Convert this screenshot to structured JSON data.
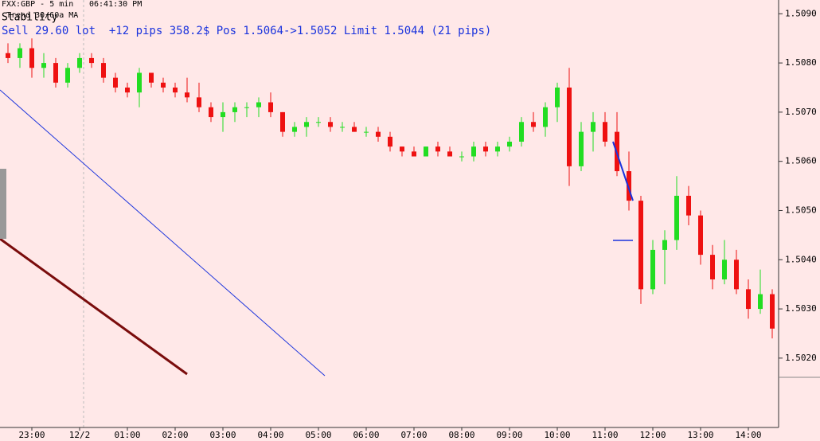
{
  "chart_data": {
    "type": "candlestick",
    "ticker": "FXX:GBP - 5 min",
    "clock": "06:41:30 PM",
    "indicator": "Trend 30/60a MA",
    "strategy": "Stability",
    "status": "Sell 29.60 lot  +12 pips 358.2$ Pos 1.5064->1.5052 Limit 1.5044 (21 pips)",
    "up_color": "#22dd22",
    "down_color": "#ee1111",
    "categories": [
      null,
      null,
      "23:00",
      null,
      null,
      null,
      "12/2",
      null,
      null,
      null,
      "01:00",
      null,
      null,
      null,
      "02:00",
      null,
      null,
      null,
      "03:00",
      null,
      null,
      null,
      "04:00",
      null,
      null,
      null,
      "05:00",
      null,
      null,
      null,
      "06:00",
      null,
      null,
      null,
      "07:00",
      null,
      null,
      null,
      "08:00",
      null,
      null,
      null,
      "09:00",
      null,
      null,
      null,
      "10:00",
      null,
      null,
      null,
      "11:00",
      null,
      null,
      null,
      "12:00",
      null,
      null,
      null,
      "13:00",
      null,
      null,
      null,
      "14:00",
      null,
      null
    ],
    "open": [
      1.5082,
      1.5081,
      1.5083,
      1.5079,
      1.508,
      1.5076,
      1.5079,
      1.5081,
      1.508,
      1.5077,
      1.5075,
      1.5074,
      1.5078,
      1.5076,
      1.5075,
      1.5074,
      1.5073,
      1.5071,
      1.5069,
      1.507,
      1.5071,
      1.5071,
      1.5072,
      1.507,
      1.5066,
      1.5067,
      1.5068,
      1.5068,
      1.5067,
      1.5067,
      1.5066,
      1.5066,
      1.5065,
      1.5063,
      1.5062,
      1.5061,
      1.5063,
      1.5062,
      1.5061,
      1.5061,
      1.5063,
      1.5062,
      1.5063,
      1.5064,
      1.5068,
      1.5067,
      1.5071,
      1.5075,
      1.5059,
      1.5066,
      1.5068,
      1.5066,
      1.5058,
      1.5052,
      1.5034,
      1.5042,
      1.5044,
      1.5053,
      1.5049,
      1.5041,
      1.5036,
      1.504,
      1.5034,
      1.503,
      1.5033
    ],
    "high": [
      1.5084,
      1.5084,
      1.5085,
      1.5082,
      1.5081,
      1.508,
      1.5082,
      1.5082,
      1.5081,
      1.5078,
      1.5076,
      1.5079,
      1.5078,
      1.5077,
      1.5076,
      1.5077,
      1.5076,
      1.5072,
      1.5072,
      1.5072,
      1.5072,
      1.5073,
      1.5074,
      1.507,
      1.5068,
      1.5069,
      1.5069,
      1.5069,
      1.5068,
      1.5068,
      1.5067,
      1.5067,
      1.5066,
      1.5063,
      1.5063,
      1.5063,
      1.5064,
      1.5063,
      1.5062,
      1.5064,
      1.5064,
      1.5064,
      1.5065,
      1.5069,
      1.507,
      1.5072,
      1.5076,
      1.5079,
      1.5068,
      1.507,
      1.507,
      1.507,
      1.5062,
      1.5053,
      1.5044,
      1.5046,
      1.5057,
      1.5055,
      1.505,
      1.5043,
      1.5044,
      1.5042,
      1.5036,
      1.5038,
      1.5034
    ],
    "low": [
      1.508,
      1.5079,
      1.5077,
      1.5077,
      1.5075,
      1.5075,
      1.5078,
      1.5079,
      1.5076,
      1.5074,
      1.5073,
      1.5071,
      1.5075,
      1.5074,
      1.5073,
      1.5072,
      1.507,
      1.5068,
      1.5066,
      1.5068,
      1.5069,
      1.5069,
      1.5069,
      1.5065,
      1.5065,
      1.5065,
      1.5067,
      1.5066,
      1.5066,
      1.5066,
      1.5065,
      1.5064,
      1.5062,
      1.5061,
      1.5061,
      1.5061,
      1.5061,
      1.5061,
      1.506,
      1.506,
      1.5061,
      1.5061,
      1.5062,
      1.5063,
      1.5066,
      1.5065,
      1.5068,
      1.5055,
      1.5058,
      1.5062,
      1.5063,
      1.5057,
      1.505,
      1.5031,
      1.5033,
      1.5035,
      1.5042,
      1.5047,
      1.5039,
      1.5034,
      1.5035,
      1.5033,
      1.5028,
      1.5029,
      1.5024
    ],
    "close": [
      1.5081,
      1.5083,
      1.5079,
      1.508,
      1.5076,
      1.5079,
      1.5081,
      1.508,
      1.5077,
      1.5075,
      1.5074,
      1.5078,
      1.5076,
      1.5075,
      1.5074,
      1.5073,
      1.5071,
      1.5069,
      1.507,
      1.5071,
      1.5071,
      1.5072,
      1.507,
      1.5066,
      1.5067,
      1.5068,
      1.5068,
      1.5067,
      1.5067,
      1.5066,
      1.5066,
      1.5065,
      1.5063,
      1.5062,
      1.5061,
      1.5063,
      1.5062,
      1.5061,
      1.5061,
      1.5063,
      1.5062,
      1.5063,
      1.5064,
      1.5068,
      1.5067,
      1.5071,
      1.5075,
      1.5059,
      1.5066,
      1.5068,
      1.5064,
      1.5058,
      1.5052,
      1.5034,
      1.5042,
      1.5044,
      1.5053,
      1.5049,
      1.5041,
      1.5036,
      1.504,
      1.5034,
      1.503,
      1.5033,
      1.5026
    ],
    "ylim": [
      1.50059,
      1.50928
    ],
    "yticks": [
      {
        "value": 1.502,
        "label": "1.5020"
      },
      {
        "value": 1.503,
        "label": "1.5030"
      },
      {
        "value": 1.504,
        "label": "1.5040"
      },
      {
        "value": 1.505,
        "label": "1.5050"
      },
      {
        "value": 1.506,
        "label": "1.5060"
      },
      {
        "value": 1.507,
        "label": "1.5070"
      },
      {
        "value": 1.508,
        "label": "1.5080"
      },
      {
        "value": 1.509,
        "label": "1.5090"
      }
    ]
  }
}
